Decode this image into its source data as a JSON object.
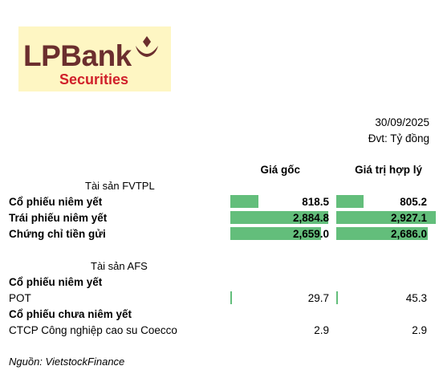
{
  "logo": {
    "name": "LPBank",
    "sub": "Securities"
  },
  "header": {
    "date": "30/09/2025",
    "unit": "Đvt: Tỷ đồng"
  },
  "columns": {
    "cost": "Giá gốc",
    "fair": "Giá trị hợp lý"
  },
  "fvtpl": {
    "title": "Tài sản FVTPL",
    "rows": [
      {
        "label": "Cổ phiếu niêm yết",
        "cost": "818.5",
        "fair": "805.2",
        "cost_value": 818.5,
        "fair_value": 805.2
      },
      {
        "label": "Trái phiếu niêm yết",
        "cost": "2,884.8",
        "fair": "2,927.1",
        "cost_value": 2884.8,
        "fair_value": 2927.1
      },
      {
        "label": "Chứng chỉ tiền gửi",
        "cost": "2,659.0",
        "fair": "2,686.0",
        "cost_value": 2659.0,
        "fair_value": 2686.0
      }
    ]
  },
  "afs": {
    "title": "Tài sản AFS",
    "group1": "Cổ phiếu niêm yết",
    "row1": {
      "label": "POT",
      "cost": "29.7",
      "fair": "45.3",
      "cost_value": 29.7,
      "fair_value": 45.3
    },
    "group2": "Cổ phiếu chưa niêm yết",
    "row2": {
      "label": "CTCP Công nghiệp cao su Coecco",
      "cost": "2.9",
      "fair": "2.9"
    }
  },
  "source": "Nguồn: VietstockFinance",
  "colors": {
    "bar": "#63be7b",
    "logo_bg": "#fef6c3",
    "logo_brand": "#6b2e2e",
    "logo_sub": "#d0202a"
  }
}
